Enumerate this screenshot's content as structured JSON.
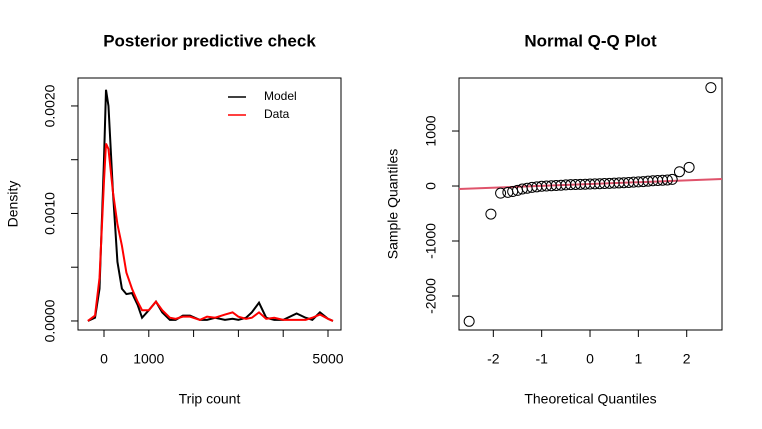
{
  "chart_data": [
    {
      "type": "line",
      "title": "Posterior predictive check",
      "xlabel": "Trip count",
      "ylabel": "Density",
      "x": [
        -360,
        -200,
        -100,
        0,
        45,
        100,
        200,
        300,
        400,
        500,
        625,
        750,
        850,
        1000,
        1160,
        1300,
        1470,
        1600,
        1760,
        1920,
        2140,
        2300,
        2480,
        2700,
        2870,
        3000,
        3170,
        3300,
        3460,
        3620,
        3800,
        4000,
        4300,
        4500,
        4650,
        4820,
        5000,
        5110
      ],
      "series": [
        {
          "name": "Model",
          "color": "#000000",
          "values": [
            0,
            3e-05,
            0.0003,
            0.0015,
            0.00215,
            0.002,
            0.0012,
            0.00055,
            0.0003,
            0.00025,
            0.00026,
            0.00015,
            3e-05,
            0.0001,
            0.00018,
            8e-05,
            1e-05,
            1e-05,
            5e-05,
            5e-05,
            1e-05,
            1e-05,
            3e-05,
            1e-05,
            2e-05,
            1e-05,
            3e-05,
            8e-05,
            0.00017,
            3e-05,
            1e-05,
            1e-05,
            7e-05,
            3e-05,
            1e-05,
            8e-05,
            2e-05,
            0
          ]
        },
        {
          "name": "Data",
          "color": "#ff0000",
          "values": [
            0,
            5e-05,
            0.0004,
            0.0013,
            0.00165,
            0.0016,
            0.0012,
            0.0009,
            0.0007,
            0.00045,
            0.0003,
            0.00018,
            0.0001,
            0.0001,
            0.00018,
            0.0001,
            3e-05,
            2e-05,
            4e-05,
            4e-05,
            1e-05,
            4e-05,
            3e-05,
            6e-05,
            8e-05,
            4e-05,
            2e-05,
            3e-05,
            8e-05,
            2e-05,
            3e-05,
            1e-05,
            1e-05,
            1e-05,
            3e-05,
            6e-05,
            2e-05,
            0
          ]
        }
      ],
      "xlim": [
        -580,
        5290
      ],
      "ylim": [
        -8.4e-05,
        0.00226
      ],
      "xticks": [
        0,
        1000,
        {
          "value": 2000,
          "label": null
        },
        {
          "value": 3000,
          "label": null
        },
        {
          "value": 4000,
          "label": null
        },
        5000
      ],
      "yticks": [
        {
          "value": 0,
          "label": "0.0000"
        },
        {
          "value": 0.0005,
          "label": null
        },
        {
          "value": 0.001,
          "label": "0.0010"
        },
        {
          "value": 0.0015,
          "label": null
        },
        {
          "value": 0.002,
          "label": "0.0020"
        }
      ],
      "legend": "topright"
    },
    {
      "type": "scatter",
      "title": "Normal Q-Q Plot",
      "xlabel": "Theoretical Quantiles",
      "ylabel": "Sample Quantiles",
      "x": [
        -2.5,
        -2.05,
        -1.85,
        -1.7,
        -1.6,
        -1.5,
        -1.4,
        -1.3,
        -1.2,
        -1.1,
        -1.0,
        -0.9,
        -0.8,
        -0.7,
        -0.6,
        -0.5,
        -0.4,
        -0.3,
        -0.2,
        -0.1,
        0,
        0.1,
        0.2,
        0.3,
        0.4,
        0.5,
        0.6,
        0.7,
        0.8,
        0.9,
        1.0,
        1.1,
        1.2,
        1.3,
        1.4,
        1.5,
        1.6,
        1.7,
        1.85,
        2.05,
        2.5
      ],
      "values": [
        -2460,
        -510,
        -130,
        -115,
        -100,
        -80,
        -55,
        -40,
        -25,
        -15,
        -5,
        0,
        5,
        10,
        15,
        20,
        25,
        28,
        30,
        33,
        36,
        40,
        42,
        45,
        48,
        52,
        56,
        60,
        65,
        70,
        75,
        80,
        88,
        95,
        100,
        105,
        110,
        120,
        260,
        340,
        1790
      ],
      "color": "#000000",
      "reference_line": {
        "intercept": 36,
        "slope": 33.5,
        "color": "#df536b"
      },
      "xlim": [
        -2.71,
        2.73
      ],
      "ylim": [
        -2618,
        1964
      ],
      "xticks": [
        -2,
        -1,
        0,
        1,
        2
      ],
      "yticks": [
        -2000,
        -1000,
        0,
        1000
      ]
    }
  ]
}
